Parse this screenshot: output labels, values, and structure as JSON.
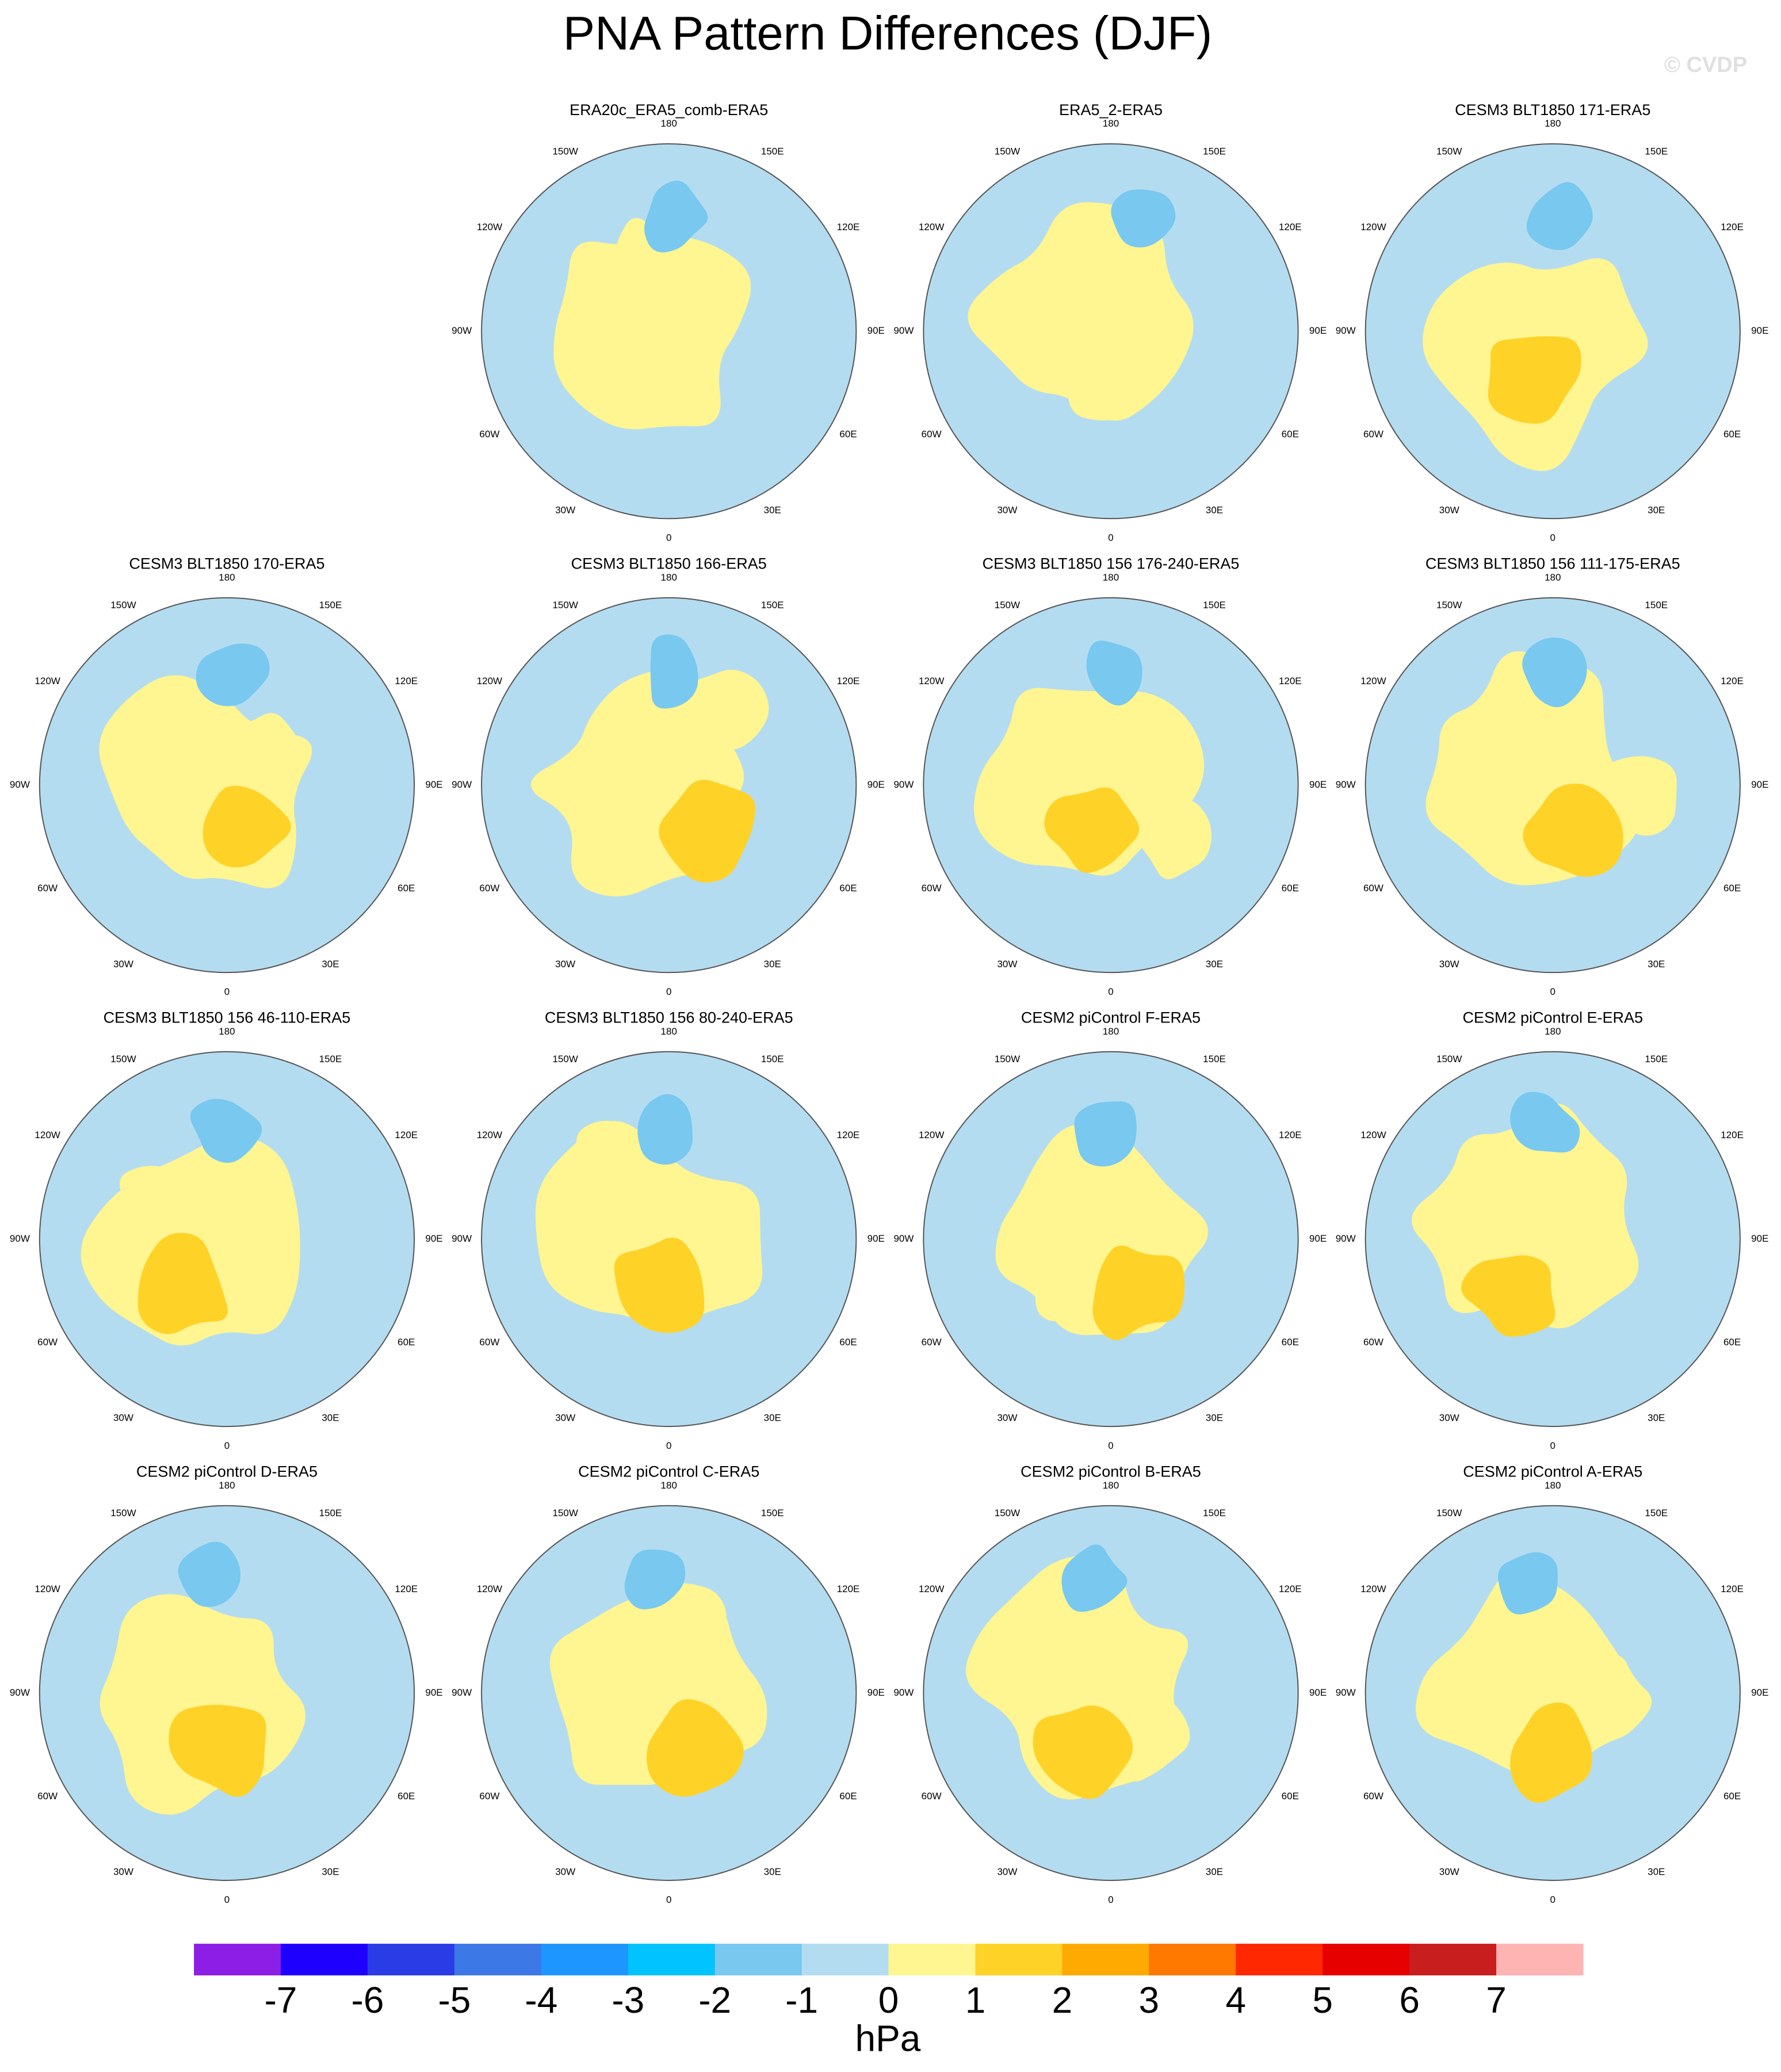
{
  "title": "PNA Pattern Differences (DJF)",
  "watermark": "© CVDP",
  "longitude_labels": [
    "180",
    "150E",
    "120E",
    "90E",
    "60E",
    "30E",
    "0",
    "30W",
    "60W",
    "90W",
    "120W",
    "150W"
  ],
  "panels": [
    {
      "title": "ERA20c_ERA5_comb-ERA5"
    },
    {
      "title": "ERA5_2-ERA5"
    },
    {
      "title": "CESM3 BLT1850 171-ERA5"
    },
    {
      "title": "CESM3 BLT1850 170-ERA5"
    },
    {
      "title": "CESM3 BLT1850 166-ERA5"
    },
    {
      "title": "CESM3 BLT1850 156 176-240-ERA5"
    },
    {
      "title": "CESM3 BLT1850 156 111-175-ERA5"
    },
    {
      "title": "CESM3 BLT1850 156 46-110-ERA5"
    },
    {
      "title": "CESM3 BLT1850 156 80-240-ERA5"
    },
    {
      "title": "CESM2 piControl F-ERA5"
    },
    {
      "title": "CESM2 piControl E-ERA5"
    },
    {
      "title": "CESM2 piControl D-ERA5"
    },
    {
      "title": "CESM2 piControl C-ERA5"
    },
    {
      "title": "CESM2 piControl B-ERA5"
    },
    {
      "title": "CESM2 piControl A-ERA5"
    }
  ],
  "colorbar": {
    "levels": [
      -7,
      -6,
      -5,
      -4,
      -3,
      -2,
      -1,
      0,
      1,
      2,
      3,
      4,
      5,
      6,
      7
    ],
    "colors": [
      "#8c1ee6",
      "#1e00ff",
      "#2a3ce6",
      "#3c78e6",
      "#1e96ff",
      "#00c3ff",
      "#78c8f0",
      "#b4dcf0",
      "#fff591",
      "#ffd228",
      "#ffaa00",
      "#ff7800",
      "#ff2800",
      "#e60000",
      "#c81e1e",
      "#ffb4b4"
    ],
    "label": "hPa"
  }
}
